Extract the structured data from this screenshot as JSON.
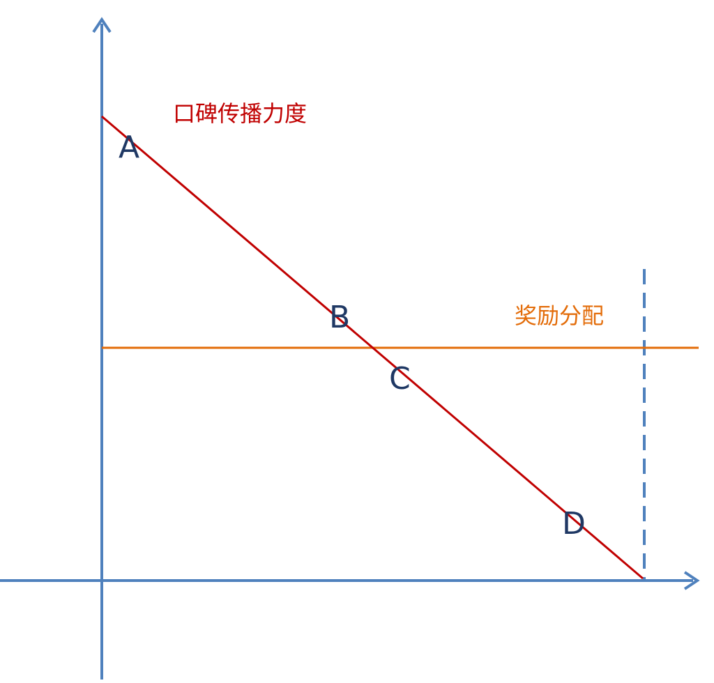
{
  "colors": {
    "axis": "#4f81bd",
    "word_of_mouth_line": "#c00000",
    "reward_line": "#e36c09",
    "point_label": "#1f3864"
  },
  "labels": {
    "word_of_mouth": "口碑传播力度",
    "reward_distribution": "奖励分配"
  },
  "points": {
    "a": "A",
    "b": "B",
    "c": "C",
    "d": "D"
  }
}
